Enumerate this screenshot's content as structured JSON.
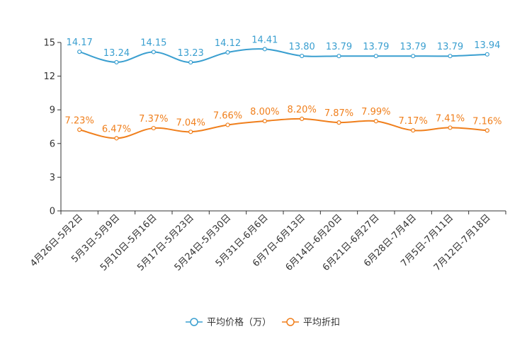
{
  "chart_data": {
    "type": "line",
    "categories": [
      "4月26日-5月2日",
      "5月3日-5月9日",
      "5月10日-5月16日",
      "5月17日-5月23日",
      "5月24日-5月30日",
      "5月31日-6月6日",
      "6月7日-6月13日",
      "6月14日-6月20日",
      "6月21日-6月27日",
      "6月28日-7月4日",
      "7月5日-7月11日",
      "7月12日-7月18日"
    ],
    "series": [
      {
        "name": "平均价格（万）",
        "color": "#3a9fd0",
        "values": [
          14.17,
          13.24,
          14.15,
          13.23,
          14.12,
          14.41,
          13.8,
          13.79,
          13.79,
          13.79,
          13.79,
          13.94
        ],
        "labels": [
          "14.17",
          "13.24",
          "14.15",
          "13.23",
          "14.12",
          "14.41",
          "13.80",
          "13.79",
          "13.79",
          "13.79",
          "13.79",
          "13.94"
        ]
      },
      {
        "name": "平均折扣",
        "color": "#f07f1c",
        "values": [
          7.23,
          6.47,
          7.37,
          7.04,
          7.66,
          8.0,
          8.2,
          7.87,
          7.99,
          7.17,
          7.41,
          7.16
        ],
        "labels": [
          "7.23%",
          "6.47%",
          "7.37%",
          "7.04%",
          "7.66%",
          "8.00%",
          "8.20%",
          "7.87%",
          "7.99%",
          "7.17%",
          "7.41%",
          "7.16%"
        ]
      }
    ],
    "yticks": [
      "0",
      "3",
      "6",
      "9",
      "12",
      "15"
    ],
    "ylim": [
      0,
      15
    ],
    "title": "",
    "xlabel": "",
    "ylabel": "",
    "legend_position": "bottom-center"
  }
}
